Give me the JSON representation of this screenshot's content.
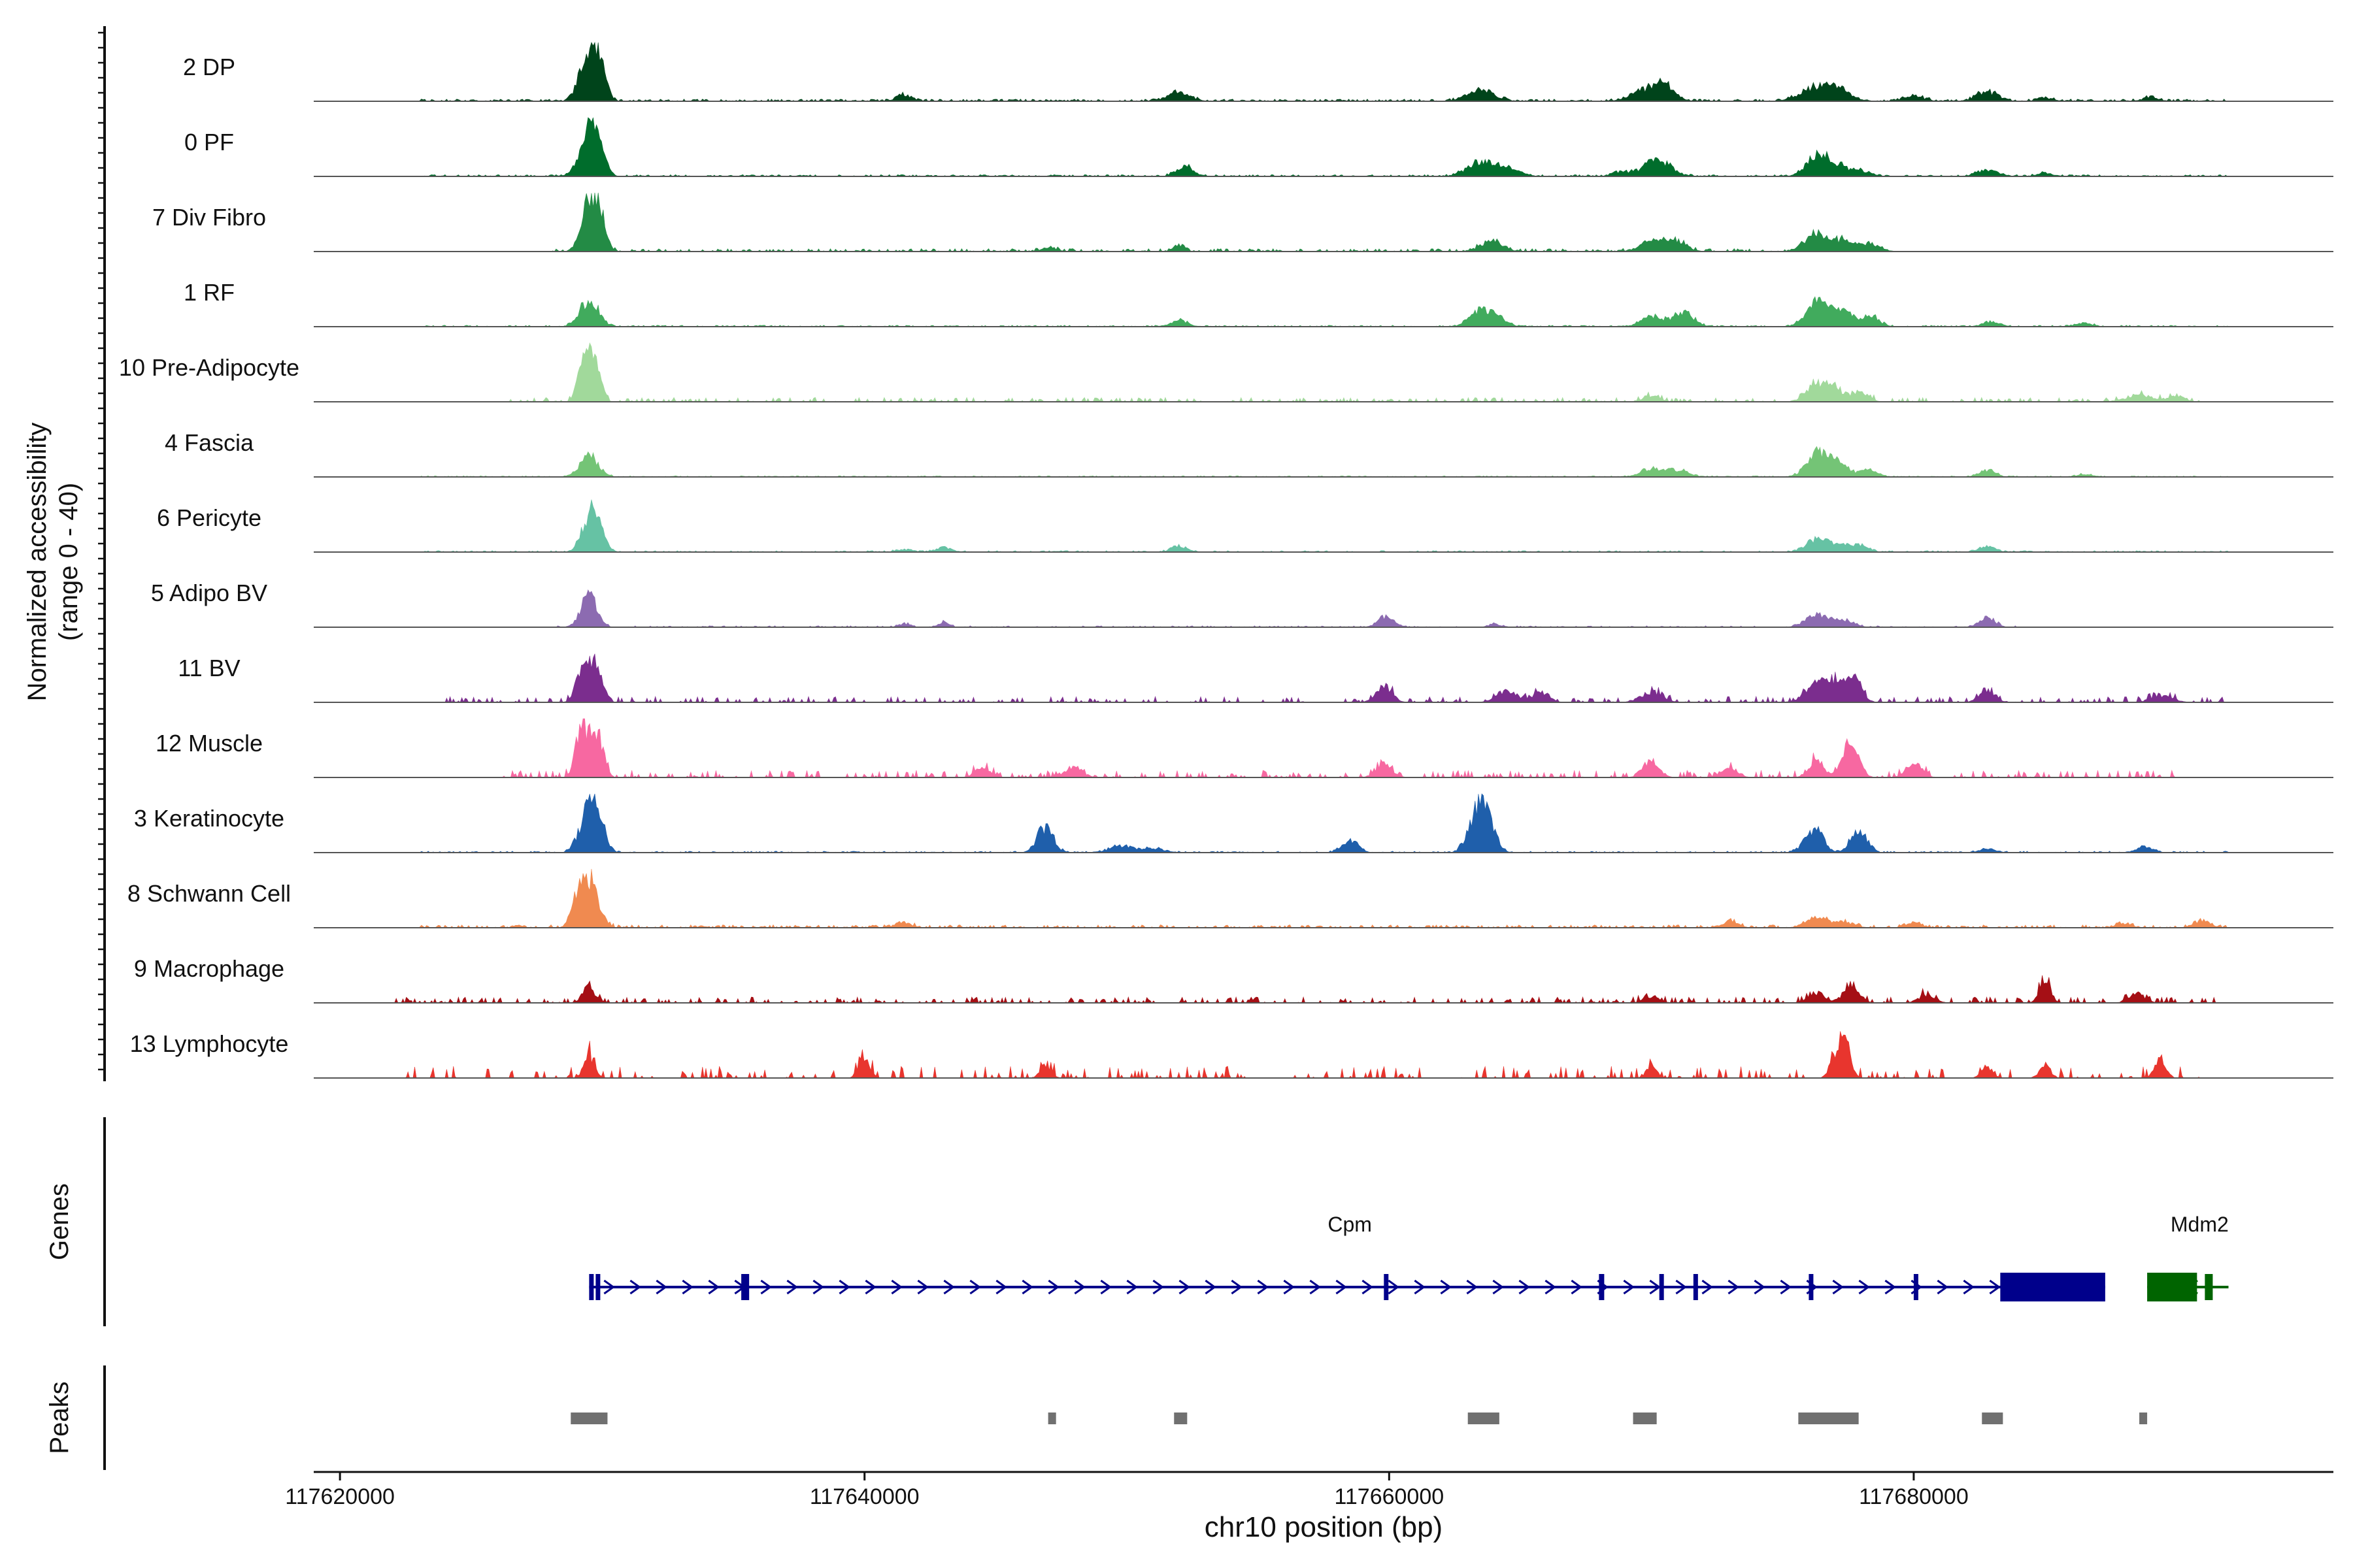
{
  "chart_data": {
    "type": "coverage",
    "ylabel_line1": "Normalized accessibility",
    "ylabel_line2": "(range 0 - 40)",
    "xlabel": "chr10 position (bp)",
    "xlim": [
      117619000,
      117696000
    ],
    "ylim": [
      0,
      40
    ],
    "x_ticks": [
      117620000,
      117640000,
      117660000,
      117680000
    ],
    "x_tick_labels": [
      "117620000",
      "117640000",
      "117660000",
      "117680000"
    ],
    "genes_label": "Genes",
    "peaks_label": "Peaks",
    "tracks": [
      {
        "name": "2 DP",
        "color": "#00441b",
        "peaks": [
          [
            117629500,
            40,
            350
          ],
          [
            117629900,
            20,
            250
          ],
          [
            117641500,
            5,
            300
          ],
          [
            117652000,
            8,
            400
          ],
          [
            117663500,
            10,
            500
          ],
          [
            117670000,
            12,
            600
          ],
          [
            117670600,
            7,
            300
          ],
          [
            117676400,
            13,
            600
          ],
          [
            117677200,
            7,
            400
          ],
          [
            117680000,
            4,
            400
          ],
          [
            117682800,
            8,
            400
          ],
          [
            117685000,
            3,
            300
          ],
          [
            117689000,
            3,
            300
          ]
        ],
        "noise": 1.5,
        "range": [
          117623000,
          117692000
        ],
        "dense": 0.7
      },
      {
        "name": "0 PF",
        "color": "#006d2c",
        "peaks": [
          [
            117629500,
            35,
            350
          ],
          [
            117629800,
            15,
            300
          ],
          [
            117652200,
            10,
            300
          ],
          [
            117663500,
            13,
            500
          ],
          [
            117664600,
            7,
            400
          ],
          [
            117668800,
            4,
            300
          ],
          [
            117670200,
            15,
            500
          ],
          [
            117676300,
            17,
            400
          ],
          [
            117677000,
            9,
            400
          ],
          [
            117677900,
            5,
            400
          ],
          [
            117682800,
            5,
            400
          ],
          [
            117685000,
            3,
            300
          ]
        ],
        "noise": 1.2,
        "range": [
          117623000,
          117692000
        ],
        "dense": 0.6
      },
      {
        "name": "7 Div Fibro",
        "color": "#238b45",
        "peaks": [
          [
            117629500,
            40,
            300
          ],
          [
            117629900,
            25,
            250
          ],
          [
            117663900,
            10,
            400
          ],
          [
            117670200,
            11,
            500
          ],
          [
            117671000,
            6,
            400
          ],
          [
            117676200,
            14,
            400
          ],
          [
            117677200,
            9,
            400
          ],
          [
            117678300,
            6,
            400
          ],
          [
            117652000,
            6,
            200
          ],
          [
            117647000,
            3,
            300
          ]
        ],
        "noise": 2,
        "range": [
          117628000,
          117679000
        ],
        "dense": 0.5
      },
      {
        "name": "1 RF",
        "color": "#41ab5d",
        "peaks": [
          [
            117629500,
            23,
            350
          ],
          [
            117652000,
            6,
            300
          ],
          [
            117663500,
            14,
            400
          ],
          [
            117664200,
            7,
            300
          ],
          [
            117670000,
            9,
            400
          ],
          [
            117671200,
            12,
            400
          ],
          [
            117676300,
            22,
            400
          ],
          [
            117677300,
            13,
            400
          ],
          [
            117678400,
            9,
            300
          ],
          [
            117683000,
            4,
            300
          ],
          [
            117686500,
            3,
            300
          ]
        ],
        "noise": 1,
        "range": [
          117623000,
          117692000
        ],
        "dense": 0.6
      },
      {
        "name": "10 Pre-Adipocyte",
        "color": "#a1d99b",
        "peaks": [
          [
            117629500,
            36,
            250
          ],
          [
            117629200,
            18,
            200
          ],
          [
            117629800,
            18,
            200
          ],
          [
            117676300,
            14,
            400
          ],
          [
            117677000,
            10,
            400
          ],
          [
            117678000,
            8,
            300
          ],
          [
            117670000,
            5,
            300
          ],
          [
            117688600,
            6,
            500
          ],
          [
            117690000,
            5,
            300
          ]
        ],
        "noise": 3,
        "range": [
          117626000,
          117691000
        ],
        "dense": 0.35
      },
      {
        "name": "4 Fascia",
        "color": "#74c476",
        "peaks": [
          [
            117629500,
            18,
            350
          ],
          [
            117676300,
            20,
            400
          ],
          [
            117677100,
            12,
            400
          ],
          [
            117678300,
            7,
            300
          ],
          [
            117670000,
            7,
            400
          ],
          [
            117671000,
            6,
            400
          ],
          [
            117682800,
            6,
            300
          ],
          [
            117686500,
            2,
            300
          ]
        ],
        "noise": 0.8,
        "range": [
          117623000,
          117692000
        ],
        "dense": 0.6
      },
      {
        "name": "6 Pericyte",
        "color": "#66c2a4",
        "peaks": [
          [
            117629500,
            30,
            300
          ],
          [
            117629900,
            16,
            250
          ],
          [
            117676300,
            11,
            400
          ],
          [
            117677200,
            7,
            400
          ],
          [
            117678000,
            5,
            300
          ],
          [
            117652000,
            5,
            300
          ],
          [
            117682800,
            5,
            300
          ],
          [
            117643000,
            4,
            300
          ],
          [
            117641500,
            2,
            300
          ]
        ],
        "noise": 1,
        "range": [
          117623000,
          117692000
        ],
        "dense": 0.5
      },
      {
        "name": "5 Adipo BV",
        "color": "#8c6bb1",
        "peaks": [
          [
            117629500,
            28,
            300
          ],
          [
            117659900,
            9,
            300
          ],
          [
            117676300,
            11,
            400
          ],
          [
            117677300,
            6,
            400
          ],
          [
            117682800,
            8,
            300
          ],
          [
            117643000,
            4,
            200
          ],
          [
            117641500,
            3,
            200
          ],
          [
            117664000,
            3,
            200
          ]
        ],
        "noise": 1,
        "range": [
          117628000,
          117684000
        ],
        "dense": 0.4
      },
      {
        "name": "11 BV",
        "color": "#7b2d8e",
        "peaks": [
          [
            117629500,
            30,
            250
          ],
          [
            117629100,
            16,
            200
          ],
          [
            117629900,
            18,
            200
          ],
          [
            117659800,
            14,
            300
          ],
          [
            117676300,
            18,
            400
          ],
          [
            117677000,
            14,
            400
          ],
          [
            117677700,
            22,
            300
          ],
          [
            117670000,
            9,
            400
          ],
          [
            117664500,
            10,
            400
          ],
          [
            117665800,
            9,
            300
          ],
          [
            117682800,
            10,
            300
          ],
          [
            117689500,
            6,
            400
          ]
        ],
        "noise": 4,
        "range": [
          117624000,
          117692000
        ],
        "dense": 0.3
      },
      {
        "name": "12 Muscle",
        "color": "#f768a1",
        "peaks": [
          [
            117629400,
            36,
            250
          ],
          [
            117629900,
            30,
            200
          ],
          [
            117629100,
            20,
            200
          ],
          [
            117677600,
            30,
            300
          ],
          [
            117676300,
            14,
            300
          ],
          [
            117670000,
            15,
            300
          ],
          [
            117659800,
            12,
            300
          ],
          [
            117648000,
            10,
            300
          ],
          [
            117644500,
            8,
            300
          ],
          [
            117680000,
            12,
            300
          ],
          [
            117673000,
            8,
            300
          ]
        ],
        "noise": 5,
        "range": [
          117626000,
          117690000
        ],
        "dense": 0.3
      },
      {
        "name": "3 Keratinocyte",
        "color": "#1f5fab",
        "peaks": [
          [
            117629500,
            36,
            350
          ],
          [
            117629800,
            18,
            300
          ],
          [
            117646900,
            22,
            300
          ],
          [
            117663400,
            38,
            350
          ],
          [
            117663800,
            16,
            300
          ],
          [
            117676200,
            20,
            350
          ],
          [
            117677900,
            20,
            300
          ],
          [
            117658500,
            10,
            300
          ],
          [
            117649800,
            6,
            400
          ],
          [
            117651000,
            4,
            400
          ],
          [
            117688800,
            5,
            300
          ],
          [
            117682800,
            3,
            300
          ]
        ],
        "noise": 1,
        "range": [
          117623000,
          117692000
        ],
        "dense": 0.5
      },
      {
        "name": "8 Schwann Cell",
        "color": "#f08a50",
        "peaks": [
          [
            117629500,
            40,
            350
          ],
          [
            117629100,
            18,
            250
          ],
          [
            117676300,
            8,
            400
          ],
          [
            117677300,
            5,
            400
          ],
          [
            117673000,
            6,
            300
          ],
          [
            117680000,
            4,
            300
          ],
          [
            117691000,
            6,
            300
          ],
          [
            117641500,
            4,
            300
          ],
          [
            117688000,
            4,
            300
          ]
        ],
        "noise": 2,
        "range": [
          117623000,
          117692000
        ],
        "dense": 0.5
      },
      {
        "name": "9 Macrophage",
        "color": "#a50f15",
        "peaks": [
          [
            117629500,
            13,
            250
          ],
          [
            117676300,
            9,
            300
          ],
          [
            117677600,
            14,
            300
          ],
          [
            117685000,
            20,
            200
          ],
          [
            117670000,
            5,
            300
          ],
          [
            117680500,
            7,
            300
          ],
          [
            117688500,
            8,
            300
          ]
        ],
        "noise": 4,
        "range": [
          117622000,
          117692000
        ],
        "dense": 0.35
      },
      {
        "name": "13 Lymphocyte",
        "color": "#e8352e",
        "peaks": [
          [
            117629500,
            20,
            200
          ],
          [
            117677400,
            30,
            200
          ],
          [
            117677000,
            18,
            200
          ],
          [
            117640000,
            18,
            200
          ],
          [
            117689400,
            18,
            200
          ],
          [
            117646900,
            12,
            200
          ],
          [
            117682800,
            10,
            200
          ],
          [
            117685000,
            12,
            200
          ],
          [
            117670000,
            10,
            200
          ]
        ],
        "noise": 8,
        "range": [
          117622000,
          117691000
        ],
        "dense": 0.2
      }
    ],
    "genes": [
      {
        "name": "Cpm",
        "color": "#00008b",
        "start": 117629500,
        "end": 117687300,
        "strand": "+",
        "label_pos": 117658500,
        "exons": [
          [
            117629500,
            117629650
          ],
          [
            117629750,
            117629850
          ],
          [
            117635300,
            117635600
          ],
          [
            117659800,
            117659870
          ],
          [
            117668000,
            117668200
          ],
          [
            117670300,
            117670400
          ],
          [
            117671600,
            117671700
          ],
          [
            117676000,
            117676100
          ],
          [
            117680000,
            117680100
          ],
          [
            117683300,
            117687300
          ]
        ]
      },
      {
        "name": "Mdm2",
        "color": "#006400",
        "start": 117688900,
        "end": 117692000,
        "strand": "-",
        "label_pos": 117690900,
        "exons": [
          [
            117688900,
            117690800
          ],
          [
            117691100,
            117691400
          ]
        ]
      }
    ],
    "peaks_regions": [
      [
        117628800,
        117630200
      ],
      [
        117647000,
        117647300
      ],
      [
        117651800,
        117652300
      ],
      [
        117663000,
        117664200
      ],
      [
        117669300,
        117670200
      ],
      [
        117675600,
        117677900
      ],
      [
        117682600,
        117683400
      ],
      [
        117688600,
        117688900
      ]
    ]
  }
}
